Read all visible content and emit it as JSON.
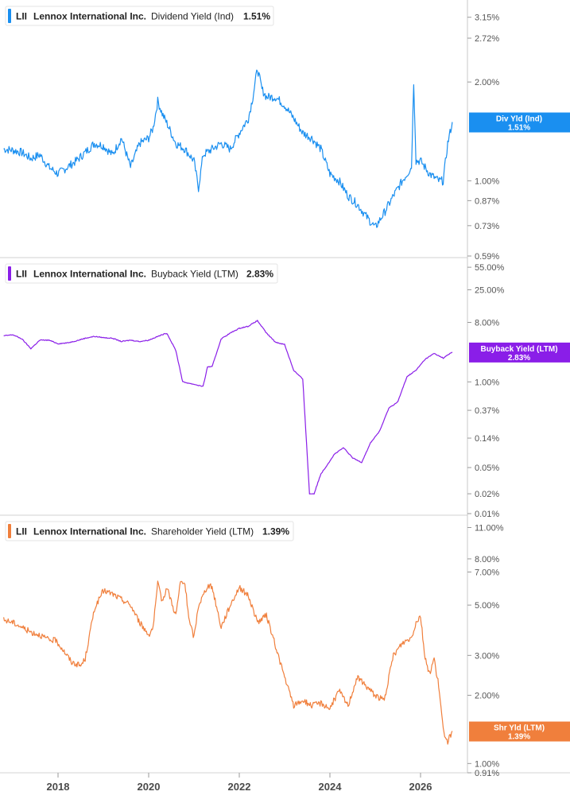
{
  "chart_data": [
    {
      "type": "line",
      "ticker": "LII",
      "company": "Lennox International Inc.",
      "metric": "Dividend Yield (Ind)",
      "current_value": "1.51%",
      "marker_label": "Div Yld (Ind)",
      "color": "#1a8ff0",
      "scale": "log",
      "ylim": [
        0.59,
        3.4
      ],
      "ticks": [
        3.15,
        2.72,
        2.0,
        1.0,
        0.87,
        0.73,
        0.59
      ],
      "tick_labels": [
        "3.15%",
        "2.72%",
        "2.00%",
        "1.00%",
        "0.87%",
        "0.73%",
        "0.59%"
      ],
      "x": [
        2016.8,
        2017.0,
        2017.2,
        2017.4,
        2017.6,
        2017.8,
        2018.0,
        2018.2,
        2018.4,
        2018.6,
        2018.8,
        2019.0,
        2019.2,
        2019.4,
        2019.6,
        2019.8,
        2020.0,
        2020.1,
        2020.2,
        2020.3,
        2020.4,
        2020.6,
        2020.8,
        2021.0,
        2021.1,
        2021.2,
        2021.4,
        2021.6,
        2021.8,
        2022.0,
        2022.2,
        2022.3,
        2022.4,
        2022.5,
        2022.6,
        2022.8,
        2023.0,
        2023.2,
        2023.4,
        2023.6,
        2023.8,
        2024.0,
        2024.2,
        2024.4,
        2024.6,
        2024.8,
        2025.0,
        2025.2,
        2025.4,
        2025.6,
        2025.8,
        2025.85,
        2025.9,
        2026.0,
        2026.2,
        2026.4,
        2026.5,
        2026.6,
        2026.7
      ],
      "values": [
        1.25,
        1.24,
        1.22,
        1.17,
        1.2,
        1.1,
        1.05,
        1.1,
        1.15,
        1.22,
        1.3,
        1.28,
        1.2,
        1.35,
        1.1,
        1.3,
        1.35,
        1.45,
        1.75,
        1.6,
        1.5,
        1.3,
        1.25,
        1.15,
        0.95,
        1.2,
        1.25,
        1.3,
        1.25,
        1.4,
        1.55,
        1.8,
        2.2,
        1.9,
        1.8,
        1.8,
        1.7,
        1.55,
        1.4,
        1.35,
        1.25,
        1.05,
        1.0,
        0.9,
        0.85,
        0.78,
        0.72,
        0.8,
        0.9,
        1.0,
        1.1,
        2.0,
        1.15,
        1.15,
        1.05,
        1.0,
        1.0,
        1.3,
        1.51
      ]
    },
    {
      "type": "line",
      "ticker": "LII",
      "company": "Lennox International Inc.",
      "metric": "Buyback Yield (LTM)",
      "current_value": "2.83%",
      "marker_label": "Buyback Yield (LTM)",
      "color": "#8a1ee8",
      "scale": "log",
      "ylim": [
        0.01,
        60
      ],
      "ticks": [
        55,
        25,
        8,
        1,
        0.37,
        0.14,
        0.05,
        0.02,
        0.01
      ],
      "tick_labels": [
        "55.00%",
        "25.00%",
        "8.00%",
        "1.00%",
        "0.37%",
        "0.14%",
        "0.05%",
        "0.02%",
        "0.01%"
      ],
      "x": [
        2016.8,
        2017.0,
        2017.2,
        2017.4,
        2017.6,
        2017.8,
        2018.0,
        2018.2,
        2018.4,
        2018.6,
        2018.8,
        2019.0,
        2019.2,
        2019.4,
        2019.6,
        2019.8,
        2020.0,
        2020.2,
        2020.4,
        2020.6,
        2020.75,
        2020.9,
        2021.0,
        2021.2,
        2021.3,
        2021.4,
        2021.6,
        2021.8,
        2022.0,
        2022.2,
        2022.4,
        2022.6,
        2022.8,
        2023.0,
        2023.2,
        2023.4,
        2023.55,
        2023.65,
        2023.8,
        2023.9,
        2024.1,
        2024.3,
        2024.5,
        2024.7,
        2024.9,
        2025.1,
        2025.3,
        2025.5,
        2025.7,
        2025.9,
        2026.1,
        2026.3,
        2026.5,
        2026.7
      ],
      "values": [
        5.0,
        5.2,
        4.5,
        3.2,
        4.3,
        4.3,
        3.8,
        3.9,
        4.2,
        4.6,
        4.9,
        4.7,
        4.6,
        4.1,
        4.3,
        4.1,
        4.3,
        4.9,
        5.5,
        3.0,
        1.0,
        0.95,
        0.92,
        0.85,
        1.7,
        1.7,
        4.5,
        5.5,
        6.5,
        7.0,
        8.5,
        5.5,
        4.0,
        3.7,
        1.5,
        1.1,
        0.02,
        0.02,
        0.04,
        0.05,
        0.08,
        0.1,
        0.07,
        0.06,
        0.12,
        0.18,
        0.4,
        0.5,
        1.2,
        1.5,
        2.2,
        2.7,
        2.3,
        2.83
      ]
    },
    {
      "type": "line",
      "ticker": "LII",
      "company": "Lennox International Inc.",
      "metric": "Shareholder Yield (LTM)",
      "current_value": "1.39%",
      "marker_label": "Shr Yld (LTM)",
      "color": "#f07f3c",
      "scale": "log",
      "ylim": [
        0.91,
        11.5
      ],
      "ticks": [
        11,
        8,
        7,
        5,
        3,
        2,
        1,
        0.91
      ],
      "tick_labels": [
        "11.00%",
        "8.00%",
        "7.00%",
        "5.00%",
        "3.00%",
        "2.00%",
        "1.00%",
        "0.91%"
      ],
      "x": [
        2016.8,
        2017.0,
        2017.2,
        2017.4,
        2017.6,
        2017.8,
        2017.95,
        2018.1,
        2018.3,
        2018.5,
        2018.6,
        2018.8,
        2019.0,
        2019.2,
        2019.4,
        2019.6,
        2019.8,
        2020.0,
        2020.1,
        2020.2,
        2020.3,
        2020.4,
        2020.5,
        2020.6,
        2020.7,
        2020.8,
        2020.9,
        2021.0,
        2021.1,
        2021.2,
        2021.3,
        2021.4,
        2021.6,
        2021.8,
        2022.0,
        2022.2,
        2022.4,
        2022.6,
        2022.8,
        2023.0,
        2023.2,
        2023.4,
        2023.6,
        2023.8,
        2024.0,
        2024.2,
        2024.4,
        2024.6,
        2024.8,
        2025.0,
        2025.2,
        2025.4,
        2025.6,
        2025.8,
        2025.9,
        2026.0,
        2026.1,
        2026.2,
        2026.3,
        2026.4,
        2026.5,
        2026.6,
        2026.7
      ],
      "values": [
        4.3,
        4.2,
        4.0,
        3.8,
        3.7,
        3.5,
        3.5,
        3.2,
        2.8,
        2.7,
        2.9,
        4.8,
        5.8,
        5.6,
        5.3,
        5.0,
        4.2,
        3.7,
        4.0,
        6.2,
        5.2,
        6.0,
        5.2,
        4.5,
        6.3,
        6.2,
        4.2,
        3.6,
        5.0,
        5.5,
        6.1,
        6.0,
        4.0,
        5.0,
        6.0,
        5.5,
        4.2,
        4.5,
        3.3,
        2.4,
        1.8,
        1.9,
        1.8,
        1.85,
        1.75,
        2.1,
        1.8,
        2.4,
        2.2,
        2.0,
        1.9,
        3.0,
        3.4,
        3.6,
        4.2,
        4.5,
        2.9,
        2.5,
        2.9,
        2.2,
        1.4,
        1.25,
        1.39
      ]
    }
  ],
  "x_axis": {
    "ticks": [
      2018,
      2020,
      2022,
      2024,
      2026
    ],
    "labels": [
      "2018",
      "2020",
      "2022",
      "2024",
      "2026"
    ]
  }
}
